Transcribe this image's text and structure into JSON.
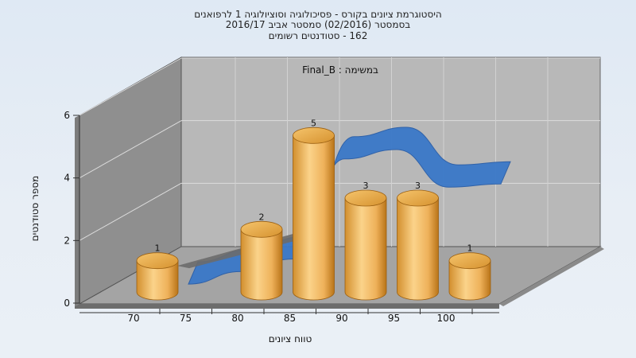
{
  "chart_data": {
    "type": "bar",
    "title_lines": [
      "היסטוגרמת ציונים בקורס - פסיכולוגיה וסוציולוגיה 1 לרפואנים",
      "בסמסטר  (02/2016)  סמסטר אביב 2016/17",
      "162 - סטודנטים רשומים"
    ],
    "annotation": "במשימה : Final_B",
    "xlabel": "טווח ציונים",
    "ylabel": "מספר סטודנטים",
    "x_ticks": [
      "70",
      "75",
      "80",
      "85",
      "90",
      "95",
      "100"
    ],
    "y_ticks": [
      "0",
      "2",
      "4",
      "6"
    ],
    "ylim": [
      0,
      6
    ],
    "series": [
      {
        "type": "bar",
        "values": [
          {
            "x": 70,
            "y": 1
          },
          {
            "x": 80,
            "y": 2
          },
          {
            "x": 85,
            "y": 5
          },
          {
            "x": 90,
            "y": 3
          },
          {
            "x": 95,
            "y": 3
          },
          {
            "x": 100,
            "y": 1
          }
        ]
      },
      {
        "type": "line",
        "values": [
          {
            "x": 70,
            "y": 0.2
          },
          {
            "x": 75,
            "y": 0.6
          },
          {
            "x": 80,
            "y": 1.0
          },
          {
            "x": 85,
            "y": 4.2
          },
          {
            "x": 90,
            "y": 4.5
          },
          {
            "x": 95,
            "y": 3.3
          },
          {
            "x": 100,
            "y": 3.4
          }
        ]
      }
    ],
    "colors": {
      "bar_light": "#fbd38a",
      "bar_mid": "#e9a84a",
      "bar_dark": "#b97418",
      "ribbon": "#3a78c8",
      "ribbon_dark": "#2a5ea8",
      "back_wall": "#b9b9b9",
      "side_wall": "#8e8e8e",
      "floor": "#a6a6a6"
    }
  }
}
